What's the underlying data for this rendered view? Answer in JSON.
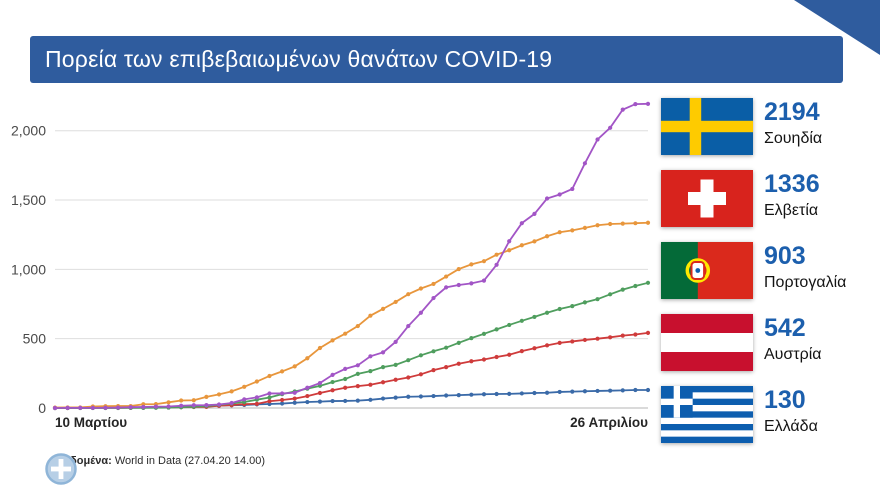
{
  "header": {
    "title": "Πορεία των επιβεβαιωμένων θανάτων COVID-19",
    "bg_color": "#2f5c9e"
  },
  "footer": {
    "label": "Δεδομένα:",
    "text": " World in Data (27.04.20 14.00)"
  },
  "colors": {
    "accent_blue": "#1c5fad",
    "banner_blue": "#2f5c9e",
    "gridline": "#dedede",
    "axis_line": "#b5b5b5"
  },
  "legend": {
    "items": [
      {
        "flag": "sweden",
        "value": "2194",
        "country": "Σουηδία"
      },
      {
        "flag": "switzerland",
        "value": "1336",
        "country": "Ελβετία"
      },
      {
        "flag": "portugal",
        "value": "903",
        "country": "Πορτογαλία"
      },
      {
        "flag": "austria",
        "value": "542",
        "country": "Αυστρία"
      },
      {
        "flag": "greece",
        "value": "130",
        "country": "Ελλάδα"
      }
    ]
  },
  "chart_data": {
    "type": "line",
    "title": "Πορεία των επιβεβαιωμένων θανάτων COVID-19",
    "xlabel": "",
    "ylabel": "",
    "x_start_label": "10 Μαρτίου",
    "x_end_label": "26 Απριλίου",
    "x_range_days": 48,
    "ylim": [
      0,
      2200
    ],
    "grid": true,
    "legend_position": "right",
    "yticks": [
      {
        "value": 0,
        "label": "0"
      },
      {
        "value": 500,
        "label": "500"
      },
      {
        "value": 1000,
        "label": "1,000"
      },
      {
        "value": 1500,
        "label": "1,500"
      },
      {
        "value": 2000,
        "label": "2,000"
      }
    ],
    "series": [
      {
        "name": "Σουηδία",
        "color": "#a255c6",
        "final": 2194,
        "values": [
          0,
          1,
          1,
          1,
          2,
          3,
          6,
          7,
          10,
          11,
          16,
          20,
          21,
          25,
          36,
          62,
          77,
          105,
          105,
          110,
          146,
          180,
          239,
          282,
          308,
          373,
          401,
          477,
          591,
          687,
          793,
          870,
          887,
          899,
          919,
          1033,
          1203,
          1333,
          1400,
          1511,
          1540,
          1580,
          1765,
          1937,
          2021,
          2152,
          2192,
          2194
        ]
      },
      {
        "name": "Ελβετία",
        "color": "#e8963c",
        "final": 1336,
        "values": [
          3,
          4,
          4,
          11,
          13,
          14,
          14,
          27,
          28,
          41,
          54,
          56,
          80,
          98,
          120,
          153,
          191,
          231,
          264,
          300,
          359,
          433,
          488,
          536,
          591,
          666,
          715,
          765,
          821,
          862,
          895,
          948,
          1002,
          1036,
          1059,
          1106,
          1138,
          1174,
          1202,
          1239,
          1268,
          1281,
          1299,
          1318,
          1327,
          1330,
          1333,
          1336
        ]
      },
      {
        "name": "Πορτογαλία",
        "color": "#4f9e5e",
        "final": 903,
        "values": [
          0,
          0,
          0,
          0,
          0,
          0,
          1,
          1,
          2,
          3,
          6,
          9,
          14,
          23,
          33,
          43,
          60,
          76,
          100,
          119,
          140,
          160,
          187,
          209,
          246,
          266,
          295,
          311,
          345,
          380,
          409,
          435,
          470,
          504,
          535,
          567,
          599,
          629,
          657,
          687,
          714,
          735,
          762,
          785,
          820,
          854,
          880,
          903
        ]
      },
      {
        "name": "Αυστρία",
        "color": "#cf3b3b",
        "final": 542,
        "values": [
          0,
          0,
          1,
          1,
          1,
          1,
          2,
          3,
          4,
          5,
          6,
          7,
          8,
          16,
          21,
          28,
          30,
          49,
          58,
          68,
          86,
          108,
          128,
          146,
          158,
          168,
          186,
          204,
          220,
          243,
          273,
          295,
          319,
          337,
          350,
          368,
          384,
          410,
          431,
          452,
          470,
          480,
          491,
          500,
          510,
          522,
          530,
          542
        ]
      },
      {
        "name": "Ελλάδα",
        "color": "#3a6aa8",
        "final": 130,
        "values": [
          0,
          1,
          1,
          2,
          3,
          4,
          4,
          5,
          5,
          6,
          6,
          13,
          15,
          17,
          20,
          22,
          26,
          29,
          32,
          38,
          43,
          46,
          50,
          51,
          53,
          59,
          68,
          75,
          81,
          83,
          86,
          90,
          93,
          96,
          99,
          101,
          102,
          105,
          108,
          110,
          116,
          118,
          121,
          123,
          125,
          127,
          130,
          130
        ]
      }
    ]
  }
}
